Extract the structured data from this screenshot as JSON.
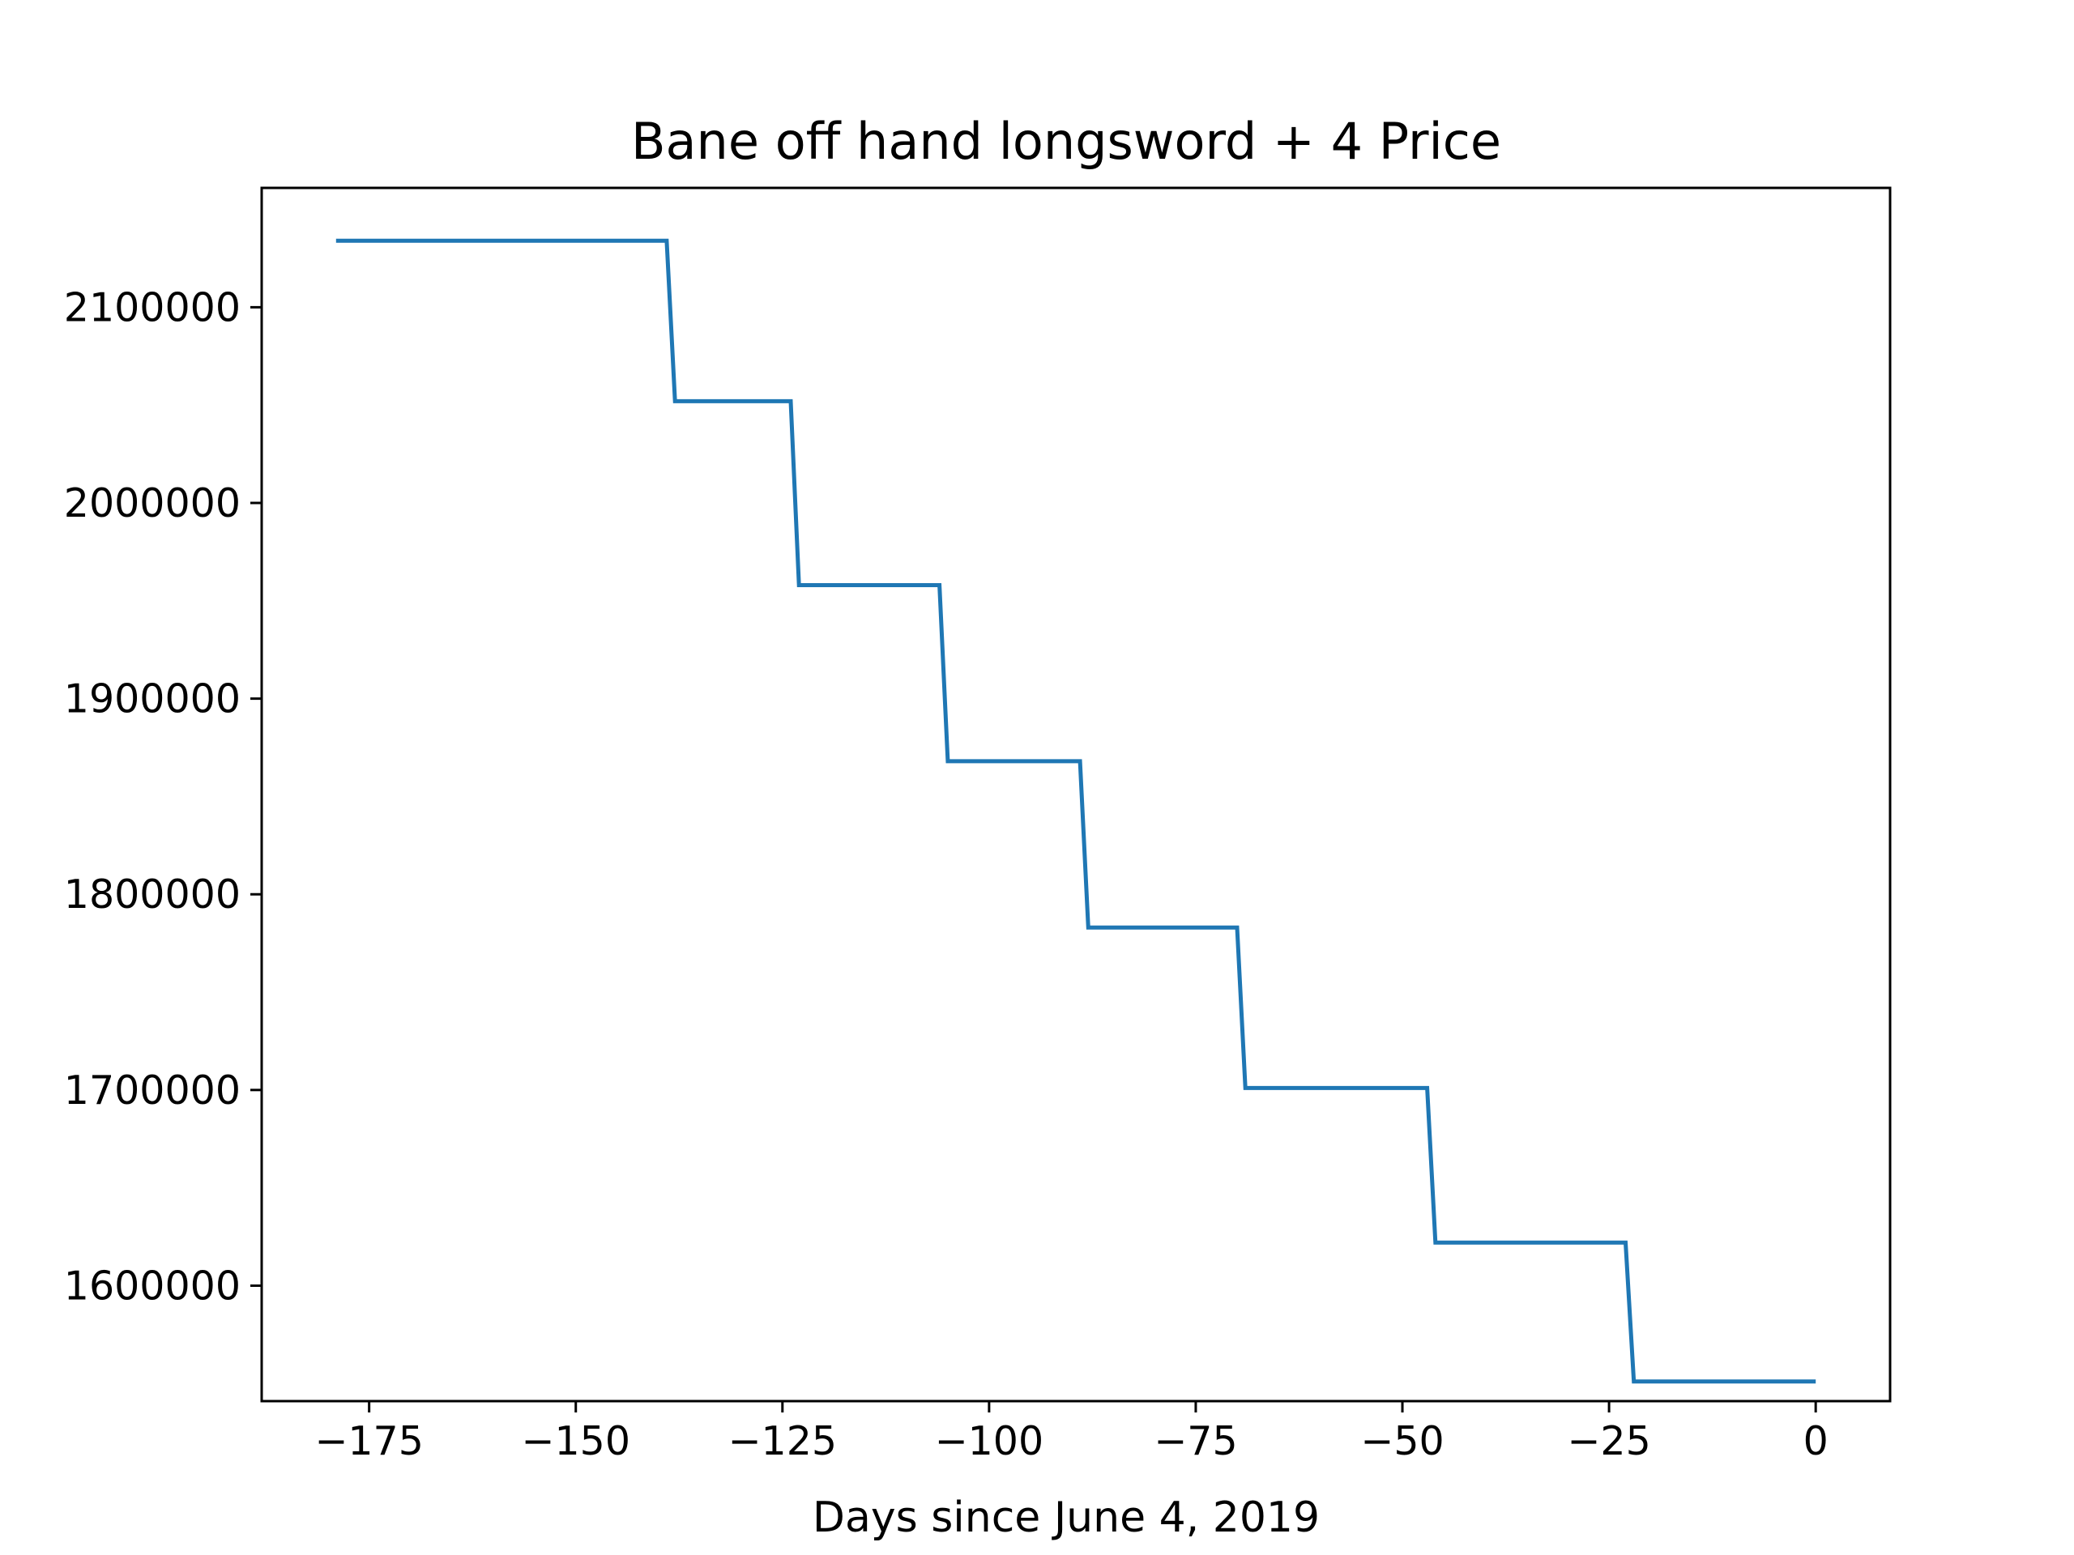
{
  "chart_data": {
    "type": "line",
    "title": "Bane off hand longsword + 4 Price",
    "xlabel": "Days since June 4, 2019",
    "ylabel": "",
    "xlim": [
      -188,
      9
    ],
    "ylim": [
      1541000,
      2161000
    ],
    "x_ticks": [
      -175,
      -150,
      -125,
      -100,
      -75,
      -50,
      -25,
      0
    ],
    "x_tick_labels": [
      "−175",
      "−150",
      "−125",
      "−100",
      "−75",
      "−50",
      "−25",
      "0"
    ],
    "y_ticks": [
      1600000,
      1700000,
      1800000,
      1900000,
      2000000,
      2100000
    ],
    "y_tick_labels": [
      "1600000",
      "1700000",
      "1800000",
      "1900000",
      "2000000",
      "2100000"
    ],
    "grid": false,
    "series": [
      {
        "color": "#1f77b4",
        "x": [
          -179,
          -139,
          -138,
          -124,
          -123,
          -106,
          -105,
          -89,
          -88,
          -70,
          -69,
          -47,
          -46,
          -23,
          -22,
          0
        ],
        "values": [
          2134000,
          2134000,
          2052000,
          2052000,
          1958000,
          1958000,
          1868000,
          1868000,
          1783000,
          1783000,
          1701000,
          1701000,
          1622000,
          1622000,
          1551000,
          1551000
        ]
      }
    ]
  }
}
